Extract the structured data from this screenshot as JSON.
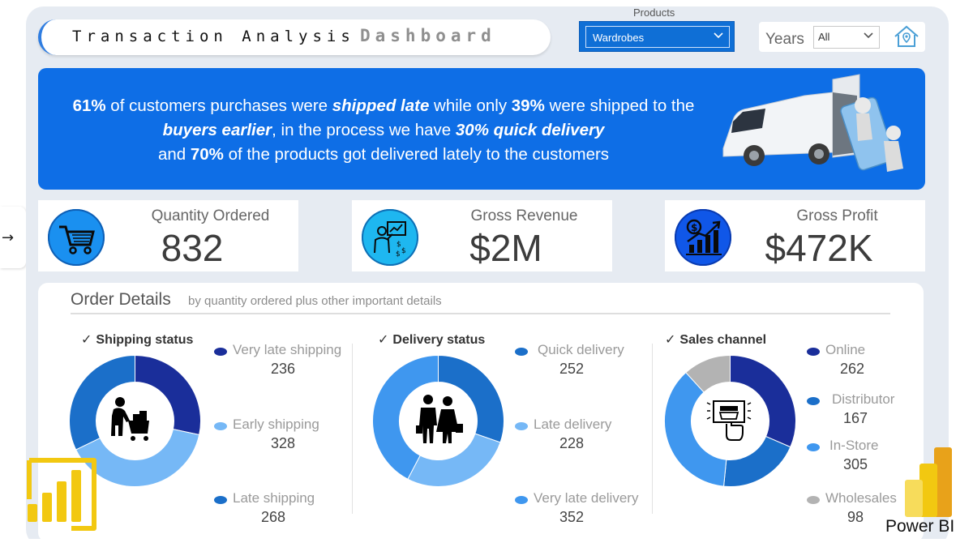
{
  "header": {
    "title_part1": "Transaction Analysis",
    "title_part2": "Dashboard"
  },
  "filters": {
    "products_label": "Products",
    "products_value": "Wardrobes",
    "years_label": "Years",
    "years_value": "All"
  },
  "banner": {
    "t1": "61%",
    "t2": " of customers purchases were ",
    "t3": "shipped late",
    "t4": " while only ",
    "t5": "39%",
    "t6": " were shipped to the ",
    "t7": "buyers earlier",
    "t8": ", in the process we have ",
    "t9": "30% quick delivery",
    "t10": " and ",
    "t11": "70%",
    "t12": " of the products got delivered lately to the customers"
  },
  "kpis": [
    {
      "label": "Quantity Ordered",
      "value": "832",
      "icon": "cart-icon",
      "color": "#1a90f0"
    },
    {
      "label": "Gross Revenue",
      "value": "$2M",
      "icon": "presenter-icon",
      "color": "#1eb7f0"
    },
    {
      "label": "Gross Profit",
      "value": "$472K",
      "icon": "growth-chart-icon",
      "color": "#1057e8"
    }
  ],
  "details": {
    "heading": "Order Details",
    "subheading": "by quantity ordered plus other important details"
  },
  "chart_data": [
    {
      "type": "donut",
      "title": "Shipping status",
      "series": [
        {
          "name": "Very late shipping",
          "value": 236,
          "color": "#1a2e9a"
        },
        {
          "name": "Early shipping",
          "value": 328,
          "color": "#76b8f6"
        },
        {
          "name": "Late shipping",
          "value": 268,
          "color": "#1b6fc9"
        }
      ],
      "center_icon": "shopper-cart-icon"
    },
    {
      "type": "donut",
      "title": "Delivery status",
      "series": [
        {
          "name": "Quick delivery",
          "value": 252,
          "color": "#1b6fc9"
        },
        {
          "name": "Late delivery",
          "value": 228,
          "color": "#76b8f6"
        },
        {
          "name": "Very late delivery",
          "value": 352,
          "color": "#3f97ef"
        }
      ],
      "center_icon": "couple-shopping-icon"
    },
    {
      "type": "donut",
      "title": "Sales channel",
      "series": [
        {
          "name": "Online",
          "value": 262,
          "color": "#1a2e9a"
        },
        {
          "name": "Distributor",
          "value": 167,
          "color": "#1b6fc9"
        },
        {
          "name": "In-Store",
          "value": 305,
          "color": "#3f97ef"
        },
        {
          "name": "Wholesales",
          "value": 98,
          "color": "#b3b3b3"
        }
      ],
      "center_icon": "online-shop-icon"
    }
  ],
  "branding": {
    "product": "Power BI"
  }
}
